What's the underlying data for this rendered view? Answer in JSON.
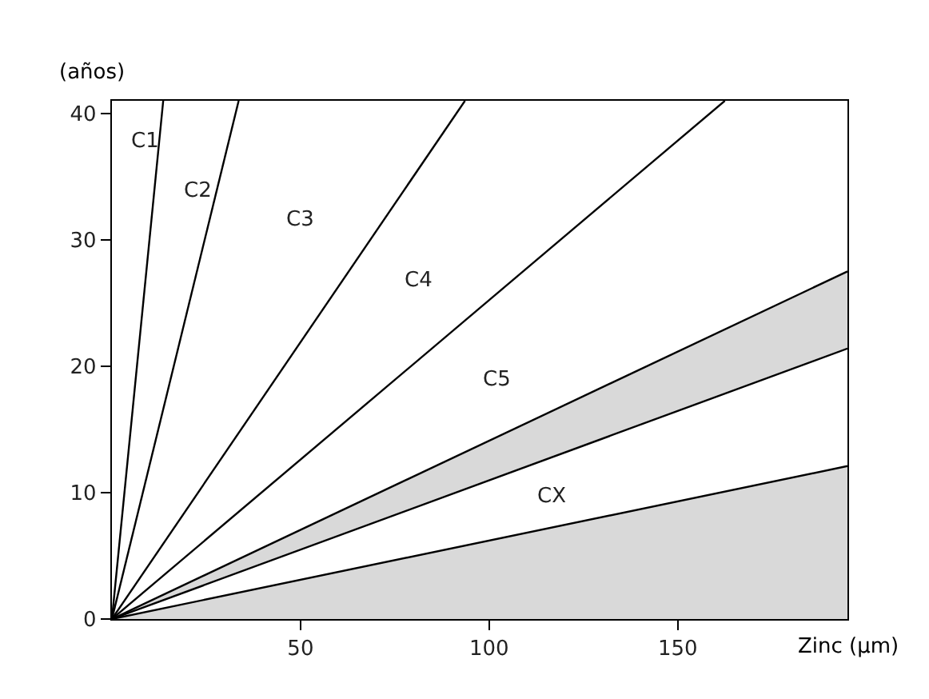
{
  "chart_data": {
    "type": "line",
    "xlabel": "Zinc (µm)",
    "ylabel": "(años)",
    "series": [
      {
        "type": "area",
        "color": "#d9d9d9",
        "x": [
          0,
          195
        ],
        "values": [
          0,
          12.1
        ]
      },
      {
        "color": "#000000",
        "x": [
          0,
          195
        ],
        "values": [
          0,
          21.4
        ],
        "lower": [
          0,
          21.4
        ],
        "upper": [
          0,
          27.5
        ]
      },
      {
        "color": "#000000",
        "x": [
          0,
          195
        ],
        "values": [
          0,
          27.5
        ]
      },
      {
        "color": "#000000",
        "x": [
          0,
          13.6
        ],
        "values": [
          0,
          41
        ]
      },
      {
        "color": "#000000",
        "x": [
          0,
          33.6
        ],
        "values": [
          0,
          41
        ]
      },
      {
        "color": "#000000",
        "x": [
          0,
          93.6
        ],
        "values": [
          0,
          41
        ]
      },
      {
        "color": "#000000",
        "x": [
          0,
          162.5
        ],
        "values": [
          0,
          41
        ]
      }
    ],
    "xlim": [
      0,
      195
    ],
    "xticks": [
      50,
      100,
      150
    ],
    "ylim": [
      0,
      41
    ],
    "yticks": [
      0,
      10,
      20,
      30,
      40
    ],
    "marker": "none",
    "line_style": "solid",
    "annotations": [
      "C1",
      "C2",
      "C3",
      "C4",
      "C5",
      "CX"
    ]
  }
}
